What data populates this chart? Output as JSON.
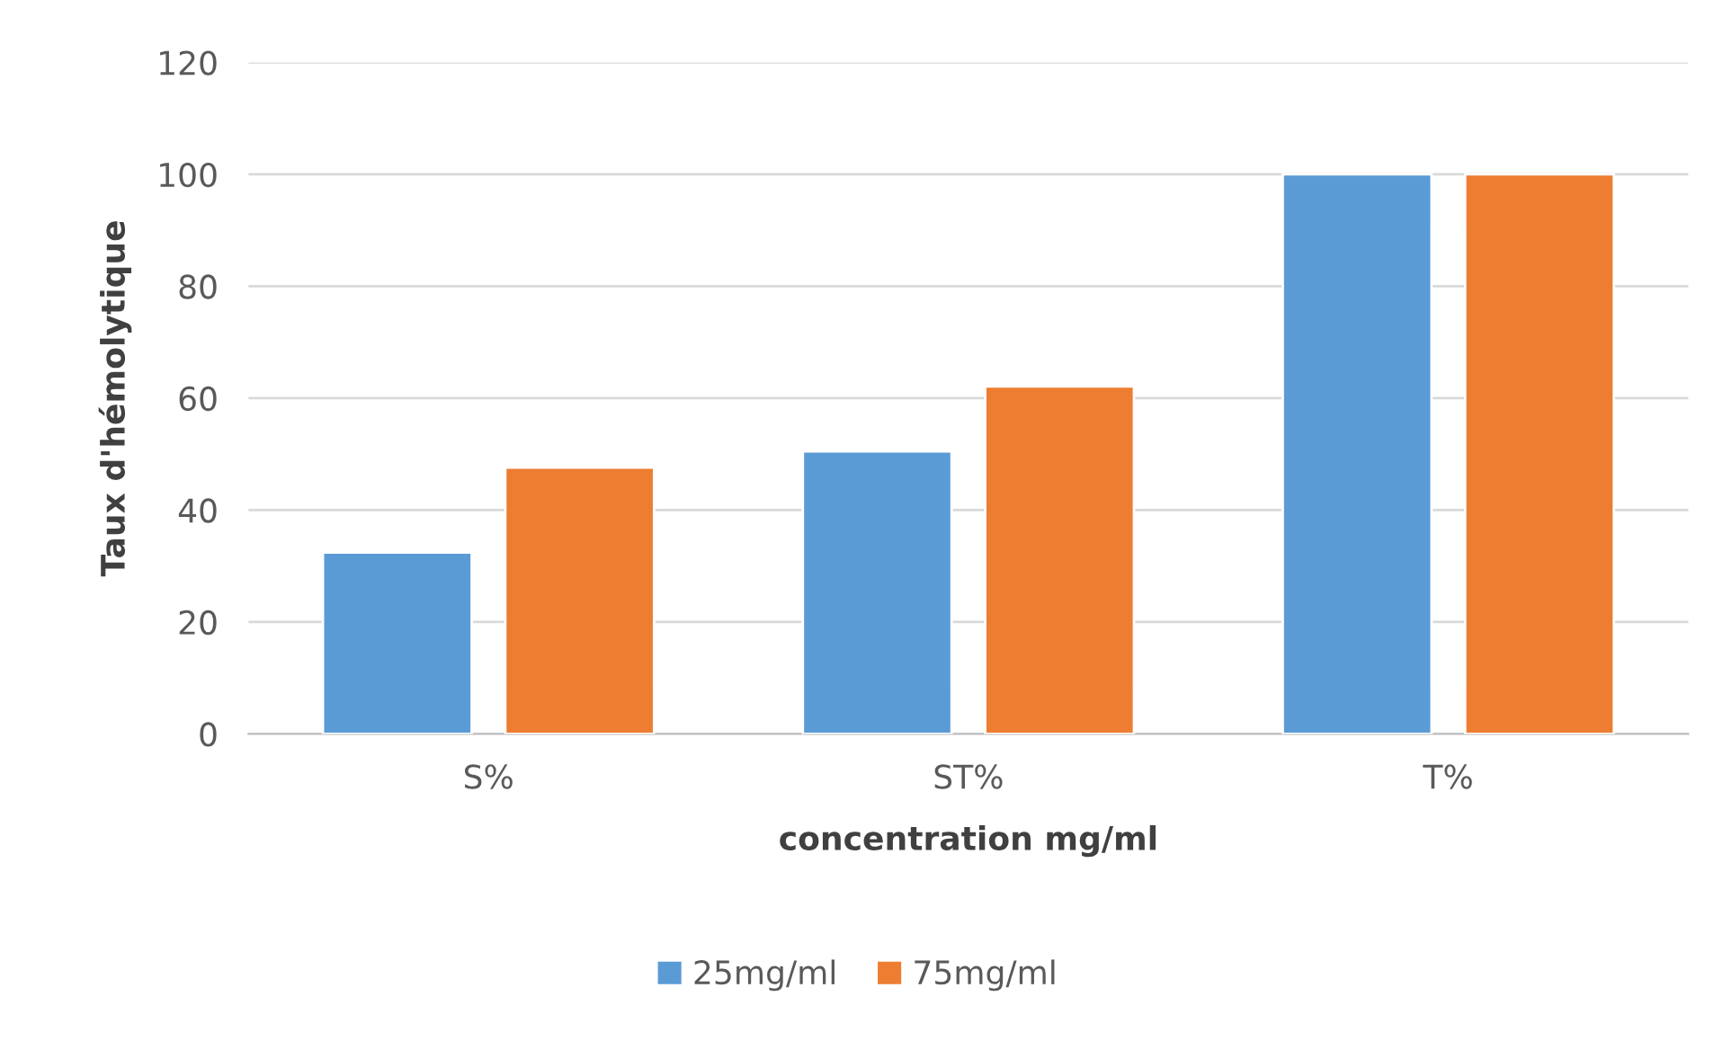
{
  "chart_data": {
    "type": "bar",
    "xlabel": "concentration mg/ml",
    "ylabel": "Taux d'hémolytique",
    "categories": [
      "S%",
      "ST%",
      "T%"
    ],
    "series": [
      {
        "name": "25mg/ml",
        "color": "#5b9bd5",
        "values": [
          32.4,
          50.5,
          100
        ]
      },
      {
        "name": "75mg/ml",
        "color": "#ed7d31",
        "values": [
          47.6,
          62.1,
          100
        ]
      }
    ],
    "ylim": [
      0,
      120
    ],
    "yticks": [
      0,
      20,
      40,
      60,
      80,
      100,
      120
    ],
    "grid": "y",
    "legend": "bottom"
  }
}
